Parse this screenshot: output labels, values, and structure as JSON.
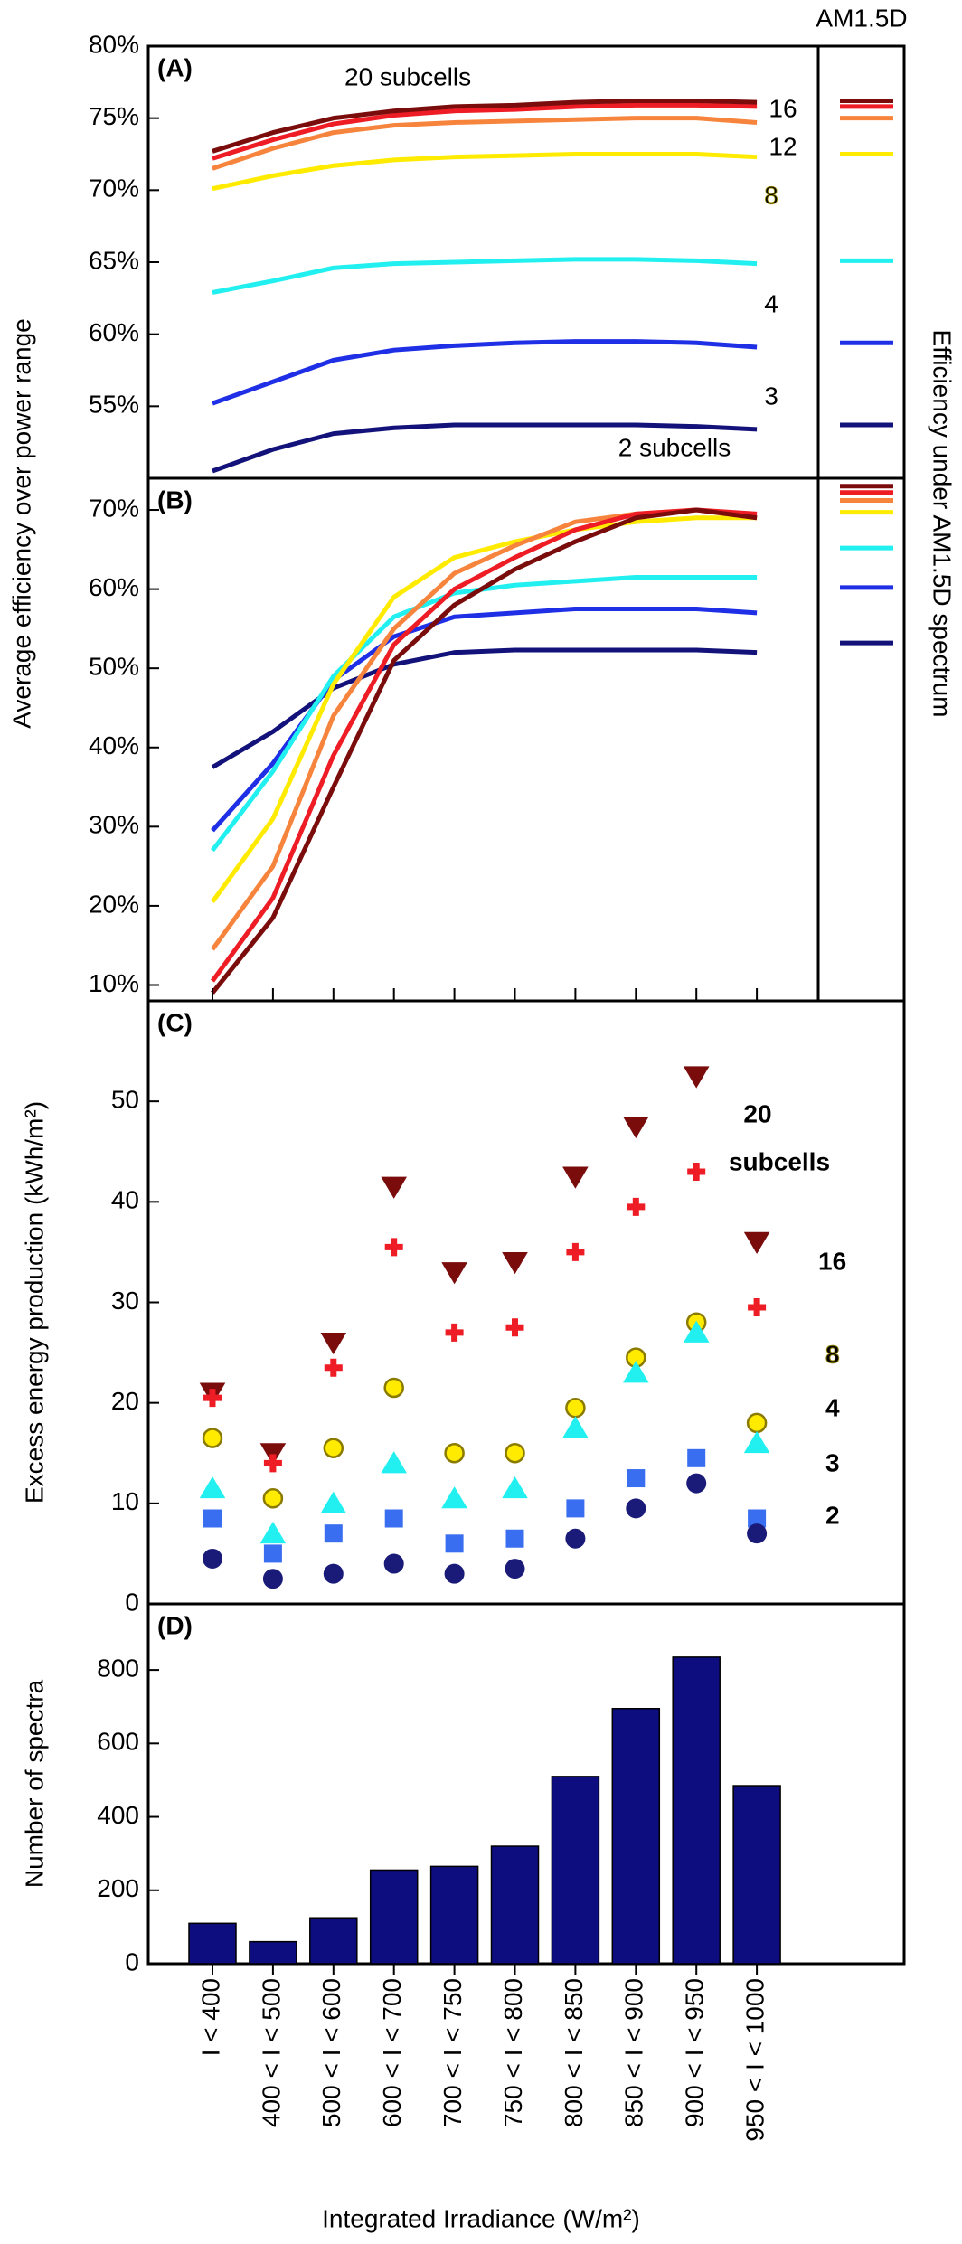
{
  "chart_data": [
    {
      "type": "line",
      "label": "(A)",
      "ylabel": "Average efficiency over power range",
      "inset_title": "AM1.5D",
      "y2label": "Efficiency under AM1.5D spectrum",
      "ylim": [
        50,
        80
      ],
      "yticks": [
        {
          "value": 55,
          "label": "55%"
        },
        {
          "value": 60,
          "label": "60%"
        },
        {
          "value": 65,
          "label": "65%"
        },
        {
          "value": 70,
          "label": "70%"
        },
        {
          "value": 75,
          "label": "75%"
        },
        {
          "value": 80,
          "label": "80%"
        }
      ],
      "series": [
        {
          "name": "20 subcells",
          "color": "#7b0c0c",
          "values": [
            72.7,
            74.0,
            75.0,
            75.5,
            75.8,
            75.9,
            76.1,
            76.2,
            76.2,
            76.1
          ],
          "am15d": 76.2
        },
        {
          "name": "16",
          "color": "#ee1c24",
          "values": [
            72.2,
            73.5,
            74.6,
            75.2,
            75.5,
            75.6,
            75.8,
            75.9,
            75.9,
            75.8
          ],
          "am15d": 75.8
        },
        {
          "name": "12",
          "color": "#f7843c",
          "values": [
            71.5,
            72.9,
            74.0,
            74.5,
            74.7,
            74.8,
            74.9,
            75.0,
            75.0,
            74.7
          ],
          "am15d": 75.0
        },
        {
          "name": "8",
          "color": "#ffeb00",
          "values": [
            70.1,
            71.0,
            71.7,
            72.1,
            72.3,
            72.4,
            72.5,
            72.5,
            72.5,
            72.3
          ],
          "am15d": 72.5
        },
        {
          "name": "4",
          "color": "#22f0f0",
          "values": [
            62.9,
            63.7,
            64.6,
            64.9,
            65.0,
            65.1,
            65.2,
            65.2,
            65.1,
            64.9
          ],
          "am15d": 65.1
        },
        {
          "name": "3",
          "color": "#1e2fe6",
          "values": [
            55.2,
            56.7,
            58.2,
            58.9,
            59.2,
            59.4,
            59.5,
            59.5,
            59.4,
            59.1
          ],
          "am15d": 59.4
        },
        {
          "name": "2 subcells",
          "color": "#12127a",
          "values": [
            50.5,
            52.0,
            53.1,
            53.5,
            53.7,
            53.7,
            53.7,
            53.7,
            53.6,
            53.4
          ],
          "am15d": 53.7
        }
      ]
    },
    {
      "type": "line",
      "label": "(B)",
      "ylim": [
        8,
        74
      ],
      "yticks": [
        {
          "value": 10,
          "label": "10%"
        },
        {
          "value": 20,
          "label": "20%"
        },
        {
          "value": 30,
          "label": "30%"
        },
        {
          "value": 40,
          "label": "40%"
        },
        {
          "value": 50,
          "label": "50%"
        },
        {
          "value": 60,
          "label": "60%"
        },
        {
          "value": 70,
          "label": "70%"
        }
      ],
      "series": [
        {
          "color": "#7b0c0c",
          "values": [
            9,
            18.5,
            35,
            51,
            58,
            62.5,
            66,
            69,
            70,
            69
          ],
          "am15d": 73.0
        },
        {
          "color": "#ee1c24",
          "values": [
            10.5,
            21,
            39,
            53,
            60,
            64,
            67.5,
            69.5,
            70,
            69.5
          ],
          "am15d": 72.2
        },
        {
          "color": "#f7843c",
          "values": [
            14.5,
            25,
            44,
            55,
            62,
            65.5,
            68.5,
            69.5,
            70,
            69
          ],
          "am15d": 71.2
        },
        {
          "color": "#ffeb00",
          "values": [
            20.5,
            31,
            48,
            59,
            64,
            66,
            67.5,
            68.5,
            69,
            69
          ],
          "am15d": 69.7
        },
        {
          "color": "#22f0f0",
          "values": [
            27,
            37,
            49,
            56.5,
            59.5,
            60.5,
            61,
            61.5,
            61.5,
            61.5
          ],
          "am15d": 65.2
        },
        {
          "color": "#1e2fe6",
          "values": [
            29.5,
            38,
            48.5,
            54,
            56.5,
            57,
            57.5,
            57.5,
            57.5,
            57
          ],
          "am15d": 60.2
        },
        {
          "color": "#12127a",
          "values": [
            37.5,
            42,
            47.5,
            50.5,
            52,
            52.3,
            52.3,
            52.3,
            52.3,
            52
          ],
          "am15d": 53.2
        }
      ]
    },
    {
      "type": "scatter",
      "label": "(C)",
      "ylabel": "Excess energy production (kWh/m²)",
      "ylim": [
        0,
        60
      ],
      "yticks": [
        0,
        10,
        20,
        30,
        40,
        50
      ],
      "series": [
        {
          "name": "20",
          "annotation": "subcells",
          "marker": "triangle-down",
          "color": "#7b0c0c",
          "values": [
            21,
            15,
            26,
            41.5,
            33,
            34,
            42.5,
            47.5,
            52.5,
            36
          ]
        },
        {
          "name": "16",
          "marker": "plus",
          "color": "#ee1c24",
          "values": [
            20.5,
            14,
            23.5,
            35.5,
            27,
            27.5,
            35,
            39.5,
            43,
            29.5
          ]
        },
        {
          "name": "8",
          "marker": "hash-circle",
          "color": "#ffeb00",
          "values": [
            16.5,
            10.5,
            15.5,
            21.5,
            15,
            15,
            19.5,
            24.5,
            28,
            18
          ]
        },
        {
          "name": "4",
          "marker": "triangle-up",
          "color": "#22f0f0",
          "values": [
            11.5,
            7,
            10,
            14,
            10.5,
            11.5,
            17.5,
            23,
            27,
            16
          ]
        },
        {
          "name": "3",
          "marker": "square",
          "color": "#3a6ef0",
          "values": [
            8.5,
            5,
            7,
            8.5,
            6,
            6.5,
            9.5,
            12.5,
            14.5,
            8.5
          ]
        },
        {
          "name": "2",
          "marker": "circle",
          "color": "#1a1a78",
          "values": [
            4.5,
            2.5,
            3,
            4,
            3,
            3.5,
            6.5,
            9.5,
            12,
            7
          ]
        }
      ]
    },
    {
      "type": "bar",
      "label": "(D)",
      "ylabel": "Number of spectra",
      "xlabel": "Integrated Irradiance (W/m²)",
      "categories": [
        "I < 400",
        "400 < I < 500",
        "500 < I < 600",
        "600 < I < 700",
        "700 < I < 750",
        "750 < I < 800",
        "800 < I < 850",
        "850 < I < 900",
        "900 < I < 950",
        "950 < I < 1000"
      ],
      "values": [
        110,
        60,
        125,
        255,
        265,
        320,
        510,
        695,
        835,
        485
      ],
      "color": "#0d0d80",
      "ylim": [
        0,
        980
      ],
      "yticks": [
        0,
        200,
        400,
        600,
        800
      ]
    }
  ]
}
